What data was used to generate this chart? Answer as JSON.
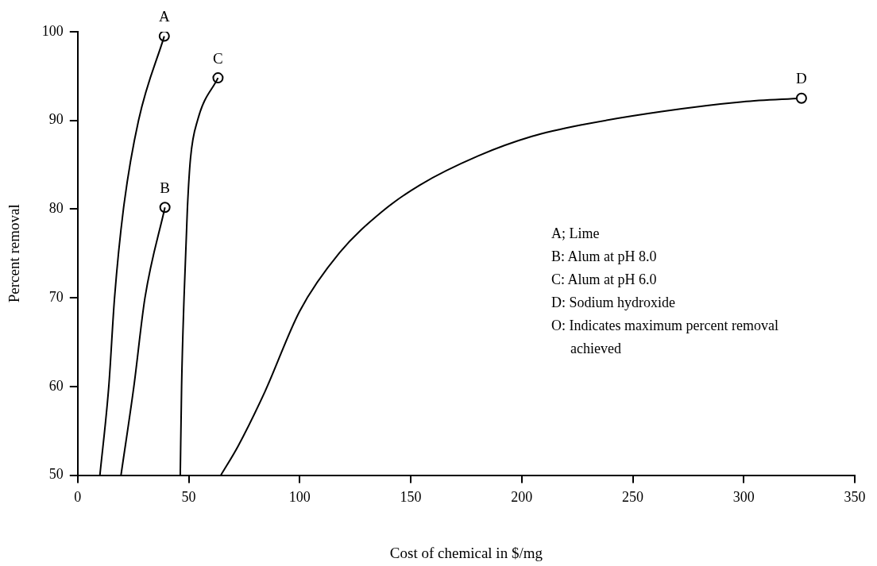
{
  "chart_data": {
    "type": "line",
    "xlabel": "Cost of chemical in $/mg",
    "ylabel": "Percent removal",
    "xlim": [
      0,
      350
    ],
    "xticks": [
      0,
      50,
      100,
      150,
      200,
      250,
      300,
      350
    ],
    "ylim": [
      50,
      100
    ],
    "yticks": [
      50,
      60,
      70,
      80,
      90,
      100
    ],
    "grid": false,
    "legend": false,
    "marker": "none",
    "line_style": "solid",
    "series": [
      {
        "name": "A",
        "color": "#000000",
        "x": [
          10,
          14,
          16.6,
          20.6,
          27.4,
          39
        ],
        "values": [
          50,
          60,
          70,
          80,
          90,
          99.5
        ]
      },
      {
        "name": "B",
        "color": "#000000",
        "x": [
          19.5,
          25.3,
          30.3,
          39.3
        ],
        "values": [
          50,
          60,
          70,
          80.2
        ]
      },
      {
        "name": "C",
        "color": "#000000",
        "x": [
          46.2,
          46.8,
          47.9,
          49.4,
          50.8,
          54.1,
          63.2
        ],
        "values": [
          50,
          60,
          70,
          80,
          85.7,
          90.1,
          94.8
        ]
      },
      {
        "type": "scatter",
        "marker": "circle",
        "color": "#000000",
        "x": [
          39,
          39.3,
          63.2,
          326
        ],
        "values": [
          99.5,
          80.2,
          94.8,
          92.5
        ]
      },
      {
        "name": "D",
        "color": "#000000",
        "x": [
          64.5,
          72.3,
          84.3,
          100,
          118,
          137,
          154,
          180.4,
          204.6,
          227,
          263,
          299.5,
          326
        ],
        "values": [
          50,
          53.3,
          59.4,
          68.5,
          75.1,
          79.7,
          82.7,
          86,
          88.2,
          89.5,
          91,
          92.1,
          92.5
        ]
      }
    ],
    "annotations": [
      "A; Lime",
      "B: Alum at pH 8.0",
      "C: Alum at pH 6.0",
      "D: Sodium hydroxide",
      "O: Indicates maximum percent removal achieved"
    ]
  }
}
